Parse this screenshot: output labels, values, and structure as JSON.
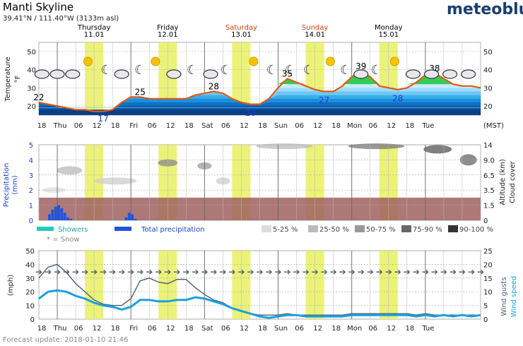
{
  "header": {
    "title": "Manti Skyline",
    "subtitle": "39.41°N / 111.40°W (3133m asl)",
    "brand": "meteoblue"
  },
  "days": [
    {
      "name": "Thursday",
      "date": "11.01",
      "color": "#000000"
    },
    {
      "name": "Friday",
      "date": "12.01",
      "color": "#000000"
    },
    {
      "name": "Saturday",
      "date": "13.01",
      "color": "#cc4400"
    },
    {
      "name": "Sunday",
      "date": "14.01",
      "color": "#cc4400"
    },
    {
      "name": "Monday",
      "date": "15.01",
      "color": "#000000"
    }
  ],
  "time_axis": {
    "labels": [
      "18",
      "Thu",
      "06",
      "12",
      "18",
      "Fri",
      "06",
      "12",
      "18",
      "Sat",
      "06",
      "12",
      "18",
      "Sun",
      "06",
      "12",
      "18",
      "Mon",
      "06",
      "12",
      "18",
      "Tue"
    ],
    "unit": "(MST)"
  },
  "temperature_panel": {
    "ylabel": "Temperature",
    "yunit": "°F",
    "yticks": [
      "20",
      "30",
      "40",
      "50"
    ],
    "labels": [
      {
        "hour": 0,
        "text": "22",
        "color": "#000000"
      },
      {
        "hour": 21,
        "text": "17",
        "color": "#1a3ecc"
      },
      {
        "hour": 33,
        "text": "25",
        "color": "#000000"
      },
      {
        "hour": 57,
        "text": "28",
        "color": "#000000"
      },
      {
        "hour": 69,
        "text": "20",
        "color": "#1a3ecc"
      },
      {
        "hour": 81,
        "text": "35",
        "color": "#000000"
      },
      {
        "hour": 93,
        "text": "27",
        "color": "#1a3ecc"
      },
      {
        "hour": 105,
        "text": "39",
        "color": "#000000"
      },
      {
        "hour": 117,
        "text": "28",
        "color": "#1a3ecc"
      },
      {
        "hour": 129,
        "text": "38",
        "color": "#000000"
      }
    ]
  },
  "precip_panel": {
    "ylabel": "Precipitation",
    "yunit": "(mm)",
    "yticks": [
      "0",
      "1",
      "2",
      "3",
      "4",
      "5"
    ],
    "right_ticks": [
      "0",
      "1.5",
      "3.5",
      "6.5",
      "9.0",
      "14"
    ],
    "right_label_1": "Altitude (km)",
    "right_label_2": "Cloud cover"
  },
  "legend": {
    "showers": "Showers",
    "total": "Total precipitation",
    "snow": "* = Snow",
    "cloud": [
      "5-25 %",
      "25-50 %",
      "50-75 %",
      "75-90 %",
      "90-100 %"
    ]
  },
  "wind_panel": {
    "ylabel": "(mph)",
    "yticks": [
      "0",
      "10",
      "20",
      "30",
      "40",
      "50"
    ],
    "right_ticks": [
      "0",
      "5",
      "10",
      "15",
      "20",
      "25"
    ],
    "right_label_1": "Wind gusts",
    "right_label_2": "Wind speed"
  },
  "footer": {
    "forecast_update": "Forecast update: 2018-01-10 21:46"
  },
  "colors": {
    "daylight": "#e8f060",
    "temp_line": "#e05a14",
    "warm_fill": "#33cc55",
    "cold_fill": "#1a8fe0",
    "precip_band": "#a06060",
    "wind_speed": "#1aa0e0",
    "wind_gust": "#4a6070"
  },
  "chart_data": [
    {
      "type": "area",
      "title": "Temperature",
      "xlabel": "(MST)",
      "ylabel": "Temperature °F",
      "ylim": [
        15,
        55
      ],
      "x_hours": [
        0,
        3,
        6,
        9,
        12,
        15,
        18,
        21,
        24,
        27,
        30,
        33,
        36,
        39,
        42,
        45,
        48,
        51,
        54,
        57,
        60,
        63,
        66,
        69,
        72,
        75,
        78,
        81,
        84,
        87,
        90,
        93,
        96,
        99,
        102,
        105,
        108,
        111,
        114,
        117,
        120,
        123,
        126,
        129,
        132,
        135,
        138,
        141,
        144
      ],
      "values": [
        22,
        21,
        20,
        19,
        18,
        18,
        17,
        17,
        18,
        22,
        25,
        25,
        24,
        24,
        24,
        24,
        24,
        26,
        27,
        28,
        27,
        24,
        22,
        21,
        21,
        24,
        30,
        35,
        33,
        31,
        29,
        28,
        28,
        31,
        36,
        39,
        36,
        31,
        30,
        29,
        30,
        33,
        37,
        38,
        35,
        32,
        31,
        31,
        30
      ],
      "extremes": [
        {
          "hour": 0,
          "value": 22
        },
        {
          "hour": 21,
          "value": 17
        },
        {
          "hour": 33,
          "value": 25
        },
        {
          "hour": 57,
          "value": 28
        },
        {
          "hour": 69,
          "value": 20
        },
        {
          "hour": 81,
          "value": 35
        },
        {
          "hour": 93,
          "value": 27
        },
        {
          "hour": 105,
          "value": 39
        },
        {
          "hour": 117,
          "value": 28
        },
        {
          "hour": 129,
          "value": 38
        }
      ]
    },
    {
      "type": "bar",
      "title": "Precipitation",
      "ylabel": "mm",
      "ylim": [
        0,
        5
      ],
      "x_hours": [
        3,
        4,
        5,
        6,
        7,
        8,
        9,
        10,
        28,
        29,
        30,
        31
      ],
      "values": [
        0.4,
        0.7,
        0.9,
        1.0,
        0.8,
        0.5,
        0.2,
        0.1,
        0.2,
        0.5,
        0.4,
        0.1
      ],
      "series_name": "Total precipitation"
    },
    {
      "type": "line",
      "title": "Wind",
      "ylabel": "(mph)",
      "ylim": [
        0,
        50
      ],
      "x_hours": [
        0,
        3,
        6,
        9,
        12,
        15,
        18,
        21,
        24,
        27,
        30,
        33,
        36,
        39,
        42,
        45,
        48,
        51,
        54,
        57,
        60,
        63,
        66,
        69,
        72,
        75,
        78,
        81,
        84,
        87,
        90,
        93,
        96,
        99,
        102,
        105,
        108,
        111,
        114,
        117,
        120,
        123,
        126,
        129,
        132,
        135,
        138,
        141,
        144
      ],
      "series": [
        {
          "name": "Wind gusts",
          "values": [
            30,
            38,
            40,
            34,
            26,
            20,
            14,
            11,
            10,
            10,
            15,
            28,
            30,
            27,
            26,
            29,
            29,
            23,
            18,
            14,
            12,
            8,
            6,
            4,
            3,
            3,
            3,
            4,
            3,
            3,
            3,
            3,
            3,
            3,
            4,
            4,
            4,
            4,
            4,
            4,
            4,
            3,
            4,
            3,
            3,
            3,
            3,
            3,
            3
          ]
        },
        {
          "name": "Wind speed",
          "values": [
            15,
            20,
            21,
            20,
            17,
            15,
            12,
            10,
            9,
            7,
            9,
            14,
            14,
            13,
            13,
            14,
            14,
            16,
            15,
            13,
            11,
            8,
            6,
            4,
            2,
            1,
            2,
            3,
            3,
            2,
            2,
            2,
            2,
            2,
            3,
            3,
            3,
            3,
            3,
            3,
            3,
            2,
            3,
            2,
            3,
            2,
            3,
            2,
            3
          ]
        }
      ]
    }
  ]
}
